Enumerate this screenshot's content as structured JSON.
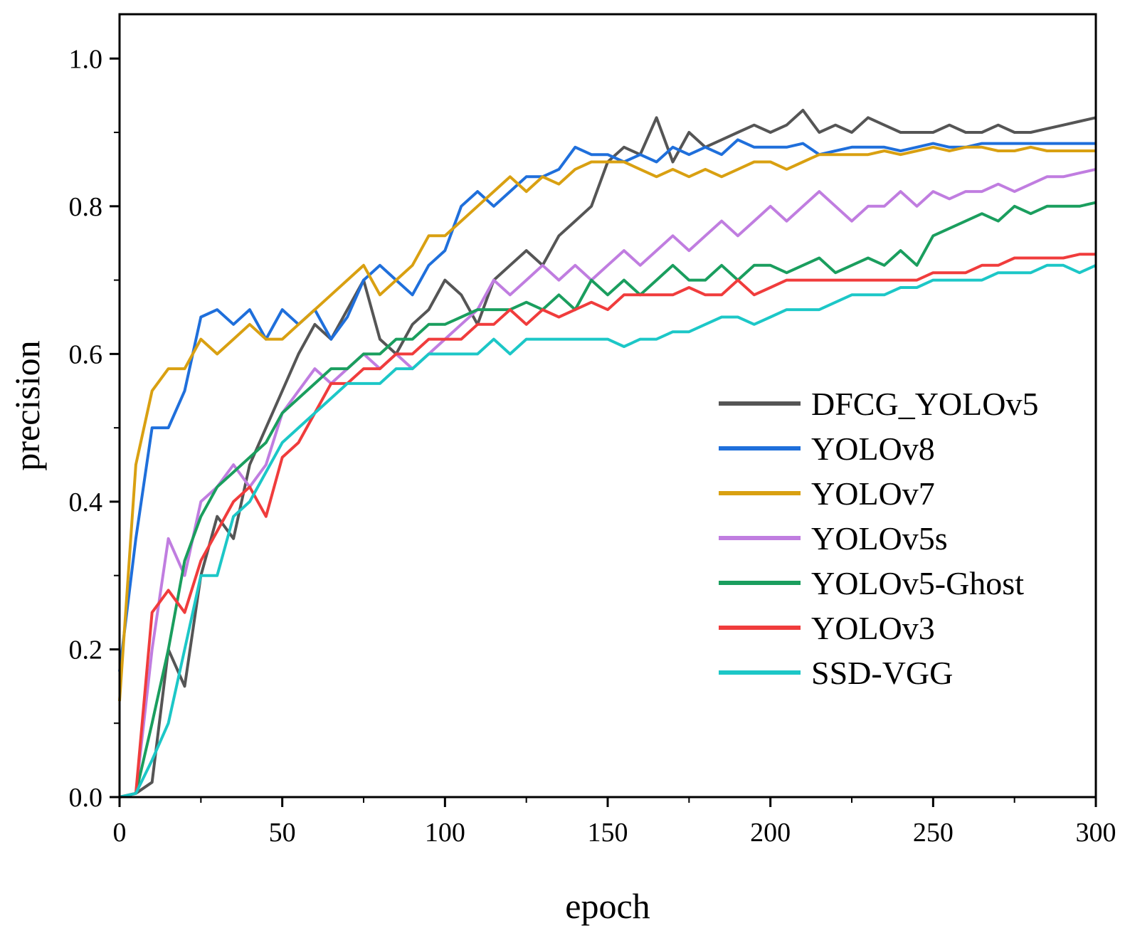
{
  "chart_data": {
    "type": "line",
    "title": "",
    "xlabel": "epoch",
    "ylabel": "precision",
    "xlim": [
      0,
      300
    ],
    "ylim": [
      0,
      1.06
    ],
    "xticks": [
      0,
      50,
      100,
      150,
      200,
      250,
      300
    ],
    "xtick_labels": [
      "0",
      "50",
      "100",
      "150",
      "200",
      "250",
      "300"
    ],
    "yticks": [
      0.0,
      0.2,
      0.4,
      0.6,
      0.8,
      1.0
    ],
    "ytick_labels": [
      "0.0",
      "0.2",
      "0.4",
      "0.6",
      "0.8",
      "1.0"
    ],
    "grid": false,
    "legend_position": "center-right",
    "series": [
      {
        "name": "DFCG_YOLOv5",
        "color": "#555555",
        "x": [
          0,
          5,
          10,
          15,
          20,
          25,
          30,
          35,
          40,
          45,
          50,
          55,
          60,
          65,
          70,
          75,
          80,
          85,
          90,
          95,
          100,
          105,
          110,
          115,
          120,
          125,
          130,
          135,
          140,
          145,
          150,
          155,
          160,
          165,
          170,
          175,
          180,
          185,
          190,
          195,
          200,
          205,
          210,
          215,
          220,
          225,
          230,
          235,
          240,
          245,
          250,
          255,
          260,
          265,
          270,
          275,
          280,
          285,
          290,
          295,
          300
        ],
        "y": [
          0.0,
          0.005,
          0.02,
          0.2,
          0.15,
          0.3,
          0.38,
          0.35,
          0.45,
          0.5,
          0.55,
          0.6,
          0.64,
          0.62,
          0.66,
          0.7,
          0.62,
          0.6,
          0.64,
          0.66,
          0.7,
          0.68,
          0.64,
          0.7,
          0.72,
          0.74,
          0.72,
          0.76,
          0.78,
          0.8,
          0.86,
          0.88,
          0.87,
          0.92,
          0.86,
          0.9,
          0.88,
          0.89,
          0.9,
          0.91,
          0.9,
          0.91,
          0.93,
          0.9,
          0.91,
          0.9,
          0.92,
          0.91,
          0.9,
          0.9,
          0.9,
          0.91,
          0.9,
          0.9,
          0.91,
          0.9,
          0.9,
          0.905,
          0.91,
          0.915,
          0.92
        ]
      },
      {
        "name": "YOLOv8",
        "color": "#1f6fdb",
        "x": [
          0,
          5,
          10,
          15,
          20,
          25,
          30,
          35,
          40,
          45,
          50,
          55,
          60,
          65,
          70,
          75,
          80,
          85,
          90,
          95,
          100,
          105,
          110,
          115,
          120,
          125,
          130,
          135,
          140,
          145,
          150,
          155,
          160,
          165,
          170,
          175,
          180,
          185,
          190,
          195,
          200,
          205,
          210,
          215,
          220,
          225,
          230,
          235,
          240,
          245,
          250,
          255,
          260,
          265,
          270,
          275,
          280,
          285,
          290,
          295,
          300
        ],
        "y": [
          0.17,
          0.35,
          0.5,
          0.5,
          0.55,
          0.65,
          0.66,
          0.64,
          0.66,
          0.62,
          0.66,
          0.64,
          0.66,
          0.62,
          0.65,
          0.7,
          0.72,
          0.7,
          0.68,
          0.72,
          0.74,
          0.8,
          0.82,
          0.8,
          0.82,
          0.84,
          0.84,
          0.85,
          0.88,
          0.87,
          0.87,
          0.86,
          0.87,
          0.86,
          0.88,
          0.87,
          0.88,
          0.87,
          0.89,
          0.88,
          0.88,
          0.88,
          0.885,
          0.87,
          0.875,
          0.88,
          0.88,
          0.88,
          0.875,
          0.88,
          0.885,
          0.88,
          0.88,
          0.885,
          0.885,
          0.885,
          0.885,
          0.885,
          0.885,
          0.885,
          0.885
        ]
      },
      {
        "name": "YOLOv7",
        "color": "#d9a011",
        "x": [
          0,
          5,
          10,
          15,
          20,
          25,
          30,
          35,
          40,
          45,
          50,
          55,
          60,
          65,
          70,
          75,
          80,
          85,
          90,
          95,
          100,
          105,
          110,
          115,
          120,
          125,
          130,
          135,
          140,
          145,
          150,
          155,
          160,
          165,
          170,
          175,
          180,
          185,
          190,
          195,
          200,
          205,
          210,
          215,
          220,
          225,
          230,
          235,
          240,
          245,
          250,
          255,
          260,
          265,
          270,
          275,
          280,
          285,
          290,
          295,
          300
        ],
        "y": [
          0.13,
          0.45,
          0.55,
          0.58,
          0.58,
          0.62,
          0.6,
          0.62,
          0.64,
          0.62,
          0.62,
          0.64,
          0.66,
          0.68,
          0.7,
          0.72,
          0.68,
          0.7,
          0.72,
          0.76,
          0.76,
          0.78,
          0.8,
          0.82,
          0.84,
          0.82,
          0.84,
          0.83,
          0.85,
          0.86,
          0.86,
          0.86,
          0.85,
          0.84,
          0.85,
          0.84,
          0.85,
          0.84,
          0.85,
          0.86,
          0.86,
          0.85,
          0.86,
          0.87,
          0.87,
          0.87,
          0.87,
          0.875,
          0.87,
          0.875,
          0.88,
          0.875,
          0.88,
          0.88,
          0.875,
          0.875,
          0.88,
          0.875,
          0.875,
          0.875,
          0.875
        ]
      },
      {
        "name": "YOLOv5s",
        "color": "#c07de0",
        "x": [
          0,
          5,
          10,
          15,
          20,
          25,
          30,
          35,
          40,
          45,
          50,
          55,
          60,
          65,
          70,
          75,
          80,
          85,
          90,
          95,
          100,
          105,
          110,
          115,
          120,
          125,
          130,
          135,
          140,
          145,
          150,
          155,
          160,
          165,
          170,
          175,
          180,
          185,
          190,
          195,
          200,
          205,
          210,
          215,
          220,
          225,
          230,
          235,
          240,
          245,
          250,
          255,
          260,
          265,
          270,
          275,
          280,
          285,
          290,
          295,
          300
        ],
        "y": [
          0.0,
          0.005,
          0.2,
          0.35,
          0.3,
          0.4,
          0.42,
          0.45,
          0.42,
          0.45,
          0.52,
          0.55,
          0.58,
          0.56,
          0.58,
          0.6,
          0.58,
          0.6,
          0.58,
          0.6,
          0.62,
          0.64,
          0.66,
          0.7,
          0.68,
          0.7,
          0.72,
          0.7,
          0.72,
          0.7,
          0.72,
          0.74,
          0.72,
          0.74,
          0.76,
          0.74,
          0.76,
          0.78,
          0.76,
          0.78,
          0.8,
          0.78,
          0.8,
          0.82,
          0.8,
          0.78,
          0.8,
          0.8,
          0.82,
          0.8,
          0.82,
          0.81,
          0.82,
          0.82,
          0.83,
          0.82,
          0.83,
          0.84,
          0.84,
          0.845,
          0.85
        ]
      },
      {
        "name": "YOLOv5-Ghost",
        "color": "#1a9e5e",
        "x": [
          0,
          5,
          10,
          15,
          20,
          25,
          30,
          35,
          40,
          45,
          50,
          55,
          60,
          65,
          70,
          75,
          80,
          85,
          90,
          95,
          100,
          105,
          110,
          115,
          120,
          125,
          130,
          135,
          140,
          145,
          150,
          155,
          160,
          165,
          170,
          175,
          180,
          185,
          190,
          195,
          200,
          205,
          210,
          215,
          220,
          225,
          230,
          235,
          240,
          245,
          250,
          255,
          260,
          265,
          270,
          275,
          280,
          285,
          290,
          295,
          300
        ],
        "y": [
          0.0,
          0.005,
          0.1,
          0.2,
          0.32,
          0.38,
          0.42,
          0.44,
          0.46,
          0.48,
          0.52,
          0.54,
          0.56,
          0.58,
          0.58,
          0.6,
          0.6,
          0.62,
          0.62,
          0.64,
          0.64,
          0.65,
          0.66,
          0.66,
          0.66,
          0.67,
          0.66,
          0.68,
          0.66,
          0.7,
          0.68,
          0.7,
          0.68,
          0.7,
          0.72,
          0.7,
          0.7,
          0.72,
          0.7,
          0.72,
          0.72,
          0.71,
          0.72,
          0.73,
          0.71,
          0.72,
          0.73,
          0.72,
          0.74,
          0.72,
          0.76,
          0.77,
          0.78,
          0.79,
          0.78,
          0.8,
          0.79,
          0.8,
          0.8,
          0.8,
          0.805
        ]
      },
      {
        "name": "YOLOv3",
        "color": "#f03c3c",
        "x": [
          0,
          5,
          10,
          15,
          20,
          25,
          30,
          35,
          40,
          45,
          50,
          55,
          60,
          65,
          70,
          75,
          80,
          85,
          90,
          95,
          100,
          105,
          110,
          115,
          120,
          125,
          130,
          135,
          140,
          145,
          150,
          155,
          160,
          165,
          170,
          175,
          180,
          185,
          190,
          195,
          200,
          205,
          210,
          215,
          220,
          225,
          230,
          235,
          240,
          245,
          250,
          255,
          260,
          265,
          270,
          275,
          280,
          285,
          290,
          295,
          300
        ],
        "y": [
          0.0,
          0.005,
          0.25,
          0.28,
          0.25,
          0.32,
          0.36,
          0.4,
          0.42,
          0.38,
          0.46,
          0.48,
          0.52,
          0.56,
          0.56,
          0.58,
          0.58,
          0.6,
          0.6,
          0.62,
          0.62,
          0.62,
          0.64,
          0.64,
          0.66,
          0.64,
          0.66,
          0.65,
          0.66,
          0.67,
          0.66,
          0.68,
          0.68,
          0.68,
          0.68,
          0.69,
          0.68,
          0.68,
          0.7,
          0.68,
          0.69,
          0.7,
          0.7,
          0.7,
          0.7,
          0.7,
          0.7,
          0.7,
          0.7,
          0.7,
          0.71,
          0.71,
          0.71,
          0.72,
          0.72,
          0.73,
          0.73,
          0.73,
          0.73,
          0.735,
          0.735
        ]
      },
      {
        "name": "SSD-VGG",
        "color": "#1cc7c7",
        "x": [
          0,
          5,
          10,
          15,
          20,
          25,
          30,
          35,
          40,
          45,
          50,
          55,
          60,
          65,
          70,
          75,
          80,
          85,
          90,
          95,
          100,
          105,
          110,
          115,
          120,
          125,
          130,
          135,
          140,
          145,
          150,
          155,
          160,
          165,
          170,
          175,
          180,
          185,
          190,
          195,
          200,
          205,
          210,
          215,
          220,
          225,
          230,
          235,
          240,
          245,
          250,
          255,
          260,
          265,
          270,
          275,
          280,
          285,
          290,
          295,
          300
        ],
        "y": [
          0.0,
          0.005,
          0.05,
          0.1,
          0.2,
          0.3,
          0.3,
          0.38,
          0.4,
          0.44,
          0.48,
          0.5,
          0.52,
          0.54,
          0.56,
          0.56,
          0.56,
          0.58,
          0.58,
          0.6,
          0.6,
          0.6,
          0.6,
          0.62,
          0.6,
          0.62,
          0.62,
          0.62,
          0.62,
          0.62,
          0.62,
          0.61,
          0.62,
          0.62,
          0.63,
          0.63,
          0.64,
          0.65,
          0.65,
          0.64,
          0.65,
          0.66,
          0.66,
          0.66,
          0.67,
          0.68,
          0.68,
          0.68,
          0.69,
          0.69,
          0.7,
          0.7,
          0.7,
          0.7,
          0.71,
          0.71,
          0.71,
          0.72,
          0.72,
          0.71,
          0.72
        ]
      }
    ]
  }
}
